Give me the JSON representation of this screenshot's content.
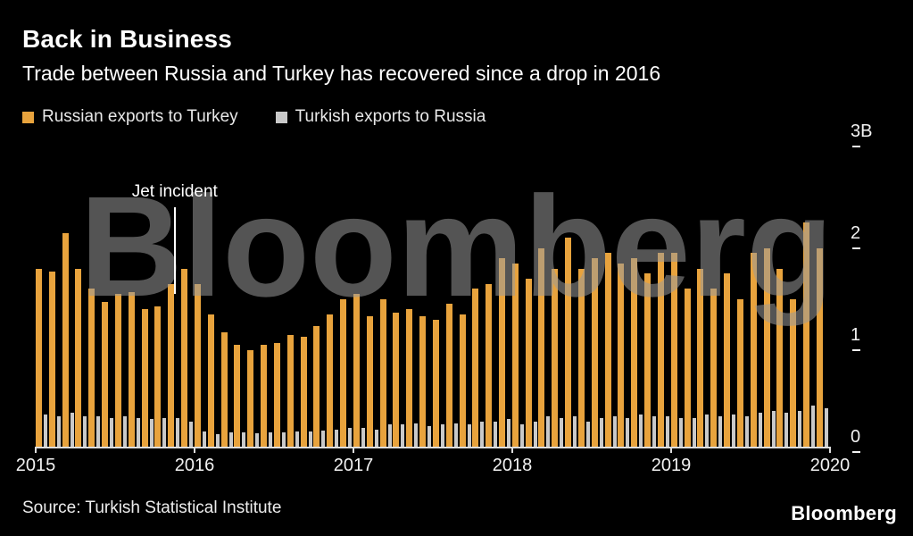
{
  "header": {
    "title": "Back in Business",
    "subtitle": "Trade between Russia and Turkey has recovered since a drop in 2016"
  },
  "legend": [
    {
      "label": "Russian exports to Turkey",
      "color": "#E8A33D"
    },
    {
      "label": "Turkish exports to Russia",
      "color": "#C9C9C9"
    }
  ],
  "watermark": "Bloomberg",
  "chart_data": {
    "type": "bar",
    "title": "Back in Business",
    "subtitle": "Trade between Russia and Turkey has recovered since a drop in 2016",
    "unit": "billions (B)",
    "frequency": "monthly",
    "x_start": "2015-01",
    "x_end": "2019-12",
    "ylim": [
      0,
      3
    ],
    "grid": false,
    "legend_position": "top-left",
    "yticks": [
      {
        "label": "3B",
        "value": 3
      },
      {
        "label": "2",
        "value": 2
      },
      {
        "label": "1",
        "value": 1
      },
      {
        "label": "0",
        "value": 0
      }
    ],
    "xticks": [
      {
        "label": "2015",
        "month_index": 0
      },
      {
        "label": "2016",
        "month_index": 12
      },
      {
        "label": "2017",
        "month_index": 24
      },
      {
        "label": "2018",
        "month_index": 36
      },
      {
        "label": "2019",
        "month_index": 48
      },
      {
        "label": "2020",
        "month_index": 60
      }
    ],
    "annotation": {
      "label": "Jet incident",
      "month_index": 10,
      "line_top_value": 2.35,
      "line_bottom_value": 1.5
    },
    "series": [
      {
        "name": "Russian exports to Turkey",
        "color": "#E8A33D",
        "values": [
          1.75,
          1.72,
          2.1,
          1.75,
          1.55,
          1.42,
          1.5,
          1.52,
          1.35,
          1.38,
          1.6,
          1.75,
          1.6,
          1.3,
          1.12,
          1.0,
          0.95,
          1.0,
          1.02,
          1.1,
          1.08,
          1.18,
          1.3,
          1.45,
          1.5,
          1.28,
          1.45,
          1.32,
          1.35,
          1.28,
          1.25,
          1.4,
          1.3,
          1.55,
          1.6,
          1.85,
          1.8,
          1.65,
          1.95,
          1.75,
          2.05,
          1.75,
          1.85,
          1.9,
          1.8,
          1.85,
          1.7,
          1.9,
          1.9,
          1.55,
          1.75,
          1.55,
          1.7,
          1.45,
          1.9,
          1.95,
          1.75,
          1.45,
          2.2,
          1.95
        ]
      },
      {
        "name": "Turkish exports to Russia",
        "color": "#C9C9C9",
        "values": [
          0.32,
          0.3,
          0.33,
          0.3,
          0.3,
          0.28,
          0.3,
          0.28,
          0.27,
          0.28,
          0.28,
          0.25,
          0.15,
          0.12,
          0.14,
          0.14,
          0.13,
          0.14,
          0.14,
          0.15,
          0.15,
          0.16,
          0.17,
          0.18,
          0.18,
          0.17,
          0.22,
          0.22,
          0.23,
          0.2,
          0.22,
          0.23,
          0.22,
          0.25,
          0.25,
          0.27,
          0.22,
          0.25,
          0.3,
          0.28,
          0.3,
          0.25,
          0.28,
          0.3,
          0.28,
          0.32,
          0.3,
          0.3,
          0.28,
          0.28,
          0.32,
          0.3,
          0.32,
          0.3,
          0.33,
          0.35,
          0.33,
          0.35,
          0.4,
          0.38
        ]
      }
    ]
  },
  "footer": {
    "source": "Source: Turkish Statistical Institute",
    "logo": "Bloomberg"
  }
}
